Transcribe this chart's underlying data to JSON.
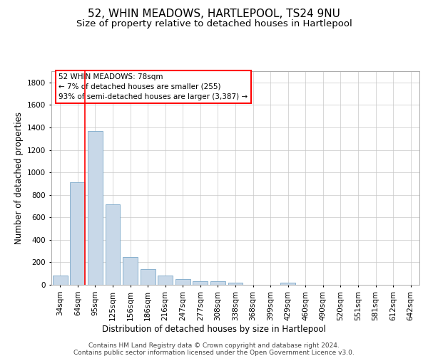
{
  "title": "52, WHIN MEADOWS, HARTLEPOOL, TS24 9NU",
  "subtitle": "Size of property relative to detached houses in Hartlepool",
  "xlabel": "Distribution of detached houses by size in Hartlepool",
  "ylabel": "Number of detached properties",
  "bar_color": "#c8d8e8",
  "bar_edge_color": "#7aa8c8",
  "background_color": "#ffffff",
  "grid_color": "#c8c8c8",
  "categories": [
    "34sqm",
    "64sqm",
    "95sqm",
    "125sqm",
    "156sqm",
    "186sqm",
    "216sqm",
    "247sqm",
    "277sqm",
    "308sqm",
    "338sqm",
    "368sqm",
    "399sqm",
    "429sqm",
    "460sqm",
    "490sqm",
    "520sqm",
    "551sqm",
    "581sqm",
    "612sqm",
    "642sqm"
  ],
  "values": [
    80,
    910,
    1370,
    715,
    245,
    140,
    85,
    50,
    30,
    30,
    20,
    0,
    0,
    20,
    0,
    0,
    0,
    0,
    0,
    0,
    0
  ],
  "ylim": [
    0,
    1900
  ],
  "yticks": [
    0,
    200,
    400,
    600,
    800,
    1000,
    1200,
    1400,
    1600,
    1800
  ],
  "annotation_box_text": "52 WHIN MEADOWS: 78sqm\n← 7% of detached houses are smaller (255)\n93% of semi-detached houses are larger (3,387) →",
  "footer_line1": "Contains HM Land Registry data © Crown copyright and database right 2024.",
  "footer_line2": "Contains public sector information licensed under the Open Government Licence v3.0.",
  "title_fontsize": 11,
  "subtitle_fontsize": 9.5,
  "axis_label_fontsize": 8.5,
  "tick_fontsize": 7.5,
  "annotation_fontsize": 7.5,
  "footer_fontsize": 6.5,
  "red_line_x": 1.42
}
